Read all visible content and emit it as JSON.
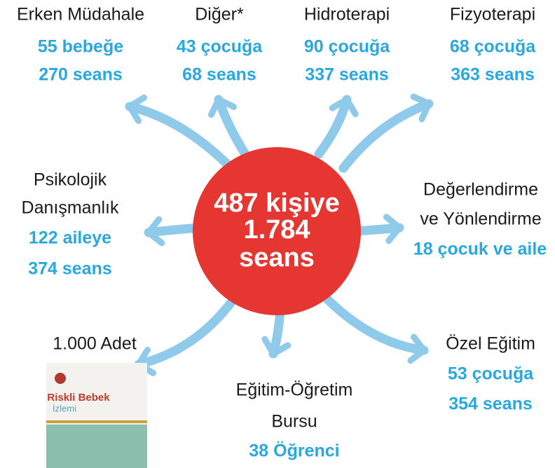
{
  "center": [
    "487 kişiye",
    "1.784",
    "seans"
  ],
  "nodes": [
    {
      "label": [
        "Erken Müdahale"
      ],
      "stats": [
        "55 bebeğe",
        "270 seans"
      ]
    },
    {
      "label": [
        "Diğer*"
      ],
      "stats": [
        "43 çocuğa",
        "68 seans"
      ]
    },
    {
      "label": [
        "Hidroterapi"
      ],
      "stats": [
        "90 çocuğa",
        "337 seans"
      ]
    },
    {
      "label": [
        "Fizyoterapi"
      ],
      "stats": [
        "68 çocuğa",
        "363 seans"
      ]
    },
    {
      "label": [
        "Psikolojik",
        "Danışmanlık"
      ],
      "stats": [
        "122 aileye",
        "374 seans"
      ]
    },
    {
      "label": [
        "Değerlendirme",
        "ve Yönlendirme"
      ],
      "stats": [
        "18 çocuk ve aile"
      ]
    },
    {
      "label": [
        "1.000 Adet"
      ],
      "stats": []
    },
    {
      "label": [
        "Eğitim-Öğretim",
        "Bursu"
      ],
      "stats": [
        "38 Öğrenci"
      ]
    },
    {
      "label": [
        "Özel Eğitim"
      ],
      "stats": [
        "53 çocuğa",
        "354 seans"
      ]
    }
  ],
  "book": {
    "title": [
      "Riskli Bebek",
      "İzlemi"
    ]
  }
}
